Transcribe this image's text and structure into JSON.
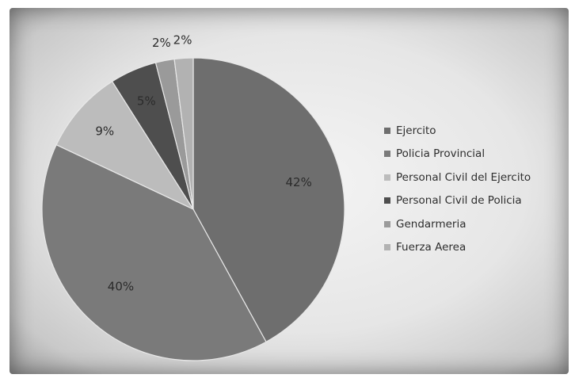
{
  "chart_data": {
    "type": "pie",
    "title": "",
    "slices": [
      {
        "name": "Ejercito",
        "value": 42,
        "label": "42%",
        "color": "#6e6e6e"
      },
      {
        "name": "Policia Provincial",
        "value": 40,
        "label": "40%",
        "color": "#7a7a7a"
      },
      {
        "name": "Personal Civil del Ejercito",
        "value": 9,
        "label": "9%",
        "color": "#bcbcbc"
      },
      {
        "name": "Personal Civil de Policia",
        "value": 5,
        "label": "5%",
        "color": "#4e4e4e"
      },
      {
        "name": "Gendarmeria",
        "value": 2,
        "label": "2%",
        "color": "#9a9a9a"
      },
      {
        "name": "Fuerza Aerea",
        "value": 2,
        "label": "2%",
        "color": "#b2b2b2"
      }
    ],
    "start_angle_deg": 0,
    "direction": "clockwise",
    "legend_position": "right"
  }
}
